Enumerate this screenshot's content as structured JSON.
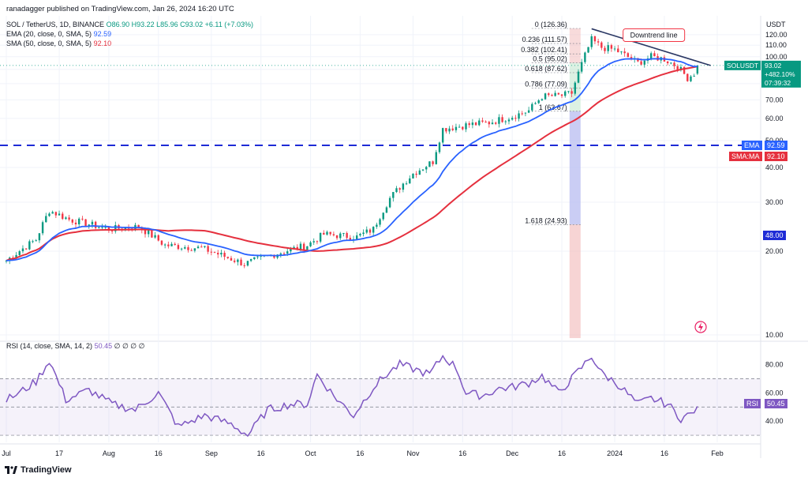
{
  "header": {
    "publish": "ranadagger published on TradingView.com, Jan 26, 2024 16:20 UTC",
    "symbol": "SOL / TetherUS, 1D, BINANCE",
    "ohlc": "O86.90 H93.22 L85.96 C93.02 +6.11 (+7.03%)",
    "ema_label": "EMA (20, close, 0, SMA, 5)",
    "ema_value": "92.59",
    "sma_label": "SMA (50, close, 0, SMA, 5)",
    "sma_value": "92.10",
    "rsi_label": "RSI (14, close, SMA, 14, 2)",
    "rsi_value": "50.45",
    "rsi_extra": "∅ ∅ ∅ ∅"
  },
  "currency": "USDT",
  "brand": "TradingView",
  "colors": {
    "up": "#089981",
    "down": "#f23645",
    "ema": "#2962ff",
    "sma": "#e5303e",
    "rsi": "#7e57c2",
    "trend": "#2a3763",
    "level": "#1e2bd6",
    "fib": "#131722"
  },
  "chart_data": [
    {
      "type": "candlestick",
      "title": "SOL / TetherUS, 1D, BINANCE",
      "y_axis": {
        "scale": "log",
        "range": [
          10,
          126.36
        ],
        "ticks": [
          "120.00",
          "110.00",
          "100.00",
          "90.00",
          "80.00",
          "70.00",
          "60.00",
          "50.00",
          "40.00",
          "30.00",
          "20.00",
          "10.00"
        ]
      },
      "x_axis": {
        "ticks": [
          "Jul",
          "17",
          "Aug",
          "16",
          "Sep",
          "16",
          "Oct",
          "16",
          "Nov",
          "16",
          "Dec",
          "16",
          "2024",
          "16",
          "Feb"
        ],
        "tick_dates": [
          "2023-07-01",
          "2023-07-17",
          "2023-08-01",
          "2023-08-16",
          "2023-09-01",
          "2023-09-16",
          "2023-10-01",
          "2023-10-16",
          "2023-11-01",
          "2023-11-16",
          "2023-12-01",
          "2023-12-16",
          "2024-01-01",
          "2024-01-16",
          "2024-02-01"
        ],
        "range": [
          "2023-07-01",
          "2024-02-01"
        ]
      },
      "closes_anchor": [
        [
          "2023-07-01",
          18.5
        ],
        [
          "2023-07-10",
          22
        ],
        [
          "2023-07-14",
          28
        ],
        [
          "2023-07-20",
          26
        ],
        [
          "2023-08-01",
          24
        ],
        [
          "2023-08-10",
          24.5
        ],
        [
          "2023-08-18",
          21
        ],
        [
          "2023-08-29",
          20.5
        ],
        [
          "2023-09-11",
          18
        ],
        [
          "2023-09-20",
          19.5
        ],
        [
          "2023-09-30",
          21
        ],
        [
          "2023-10-05",
          23
        ],
        [
          "2023-10-15",
          22.5
        ],
        [
          "2023-10-20",
          24
        ],
        [
          "2023-10-25",
          31
        ],
        [
          "2023-11-01",
          38
        ],
        [
          "2023-11-07",
          42
        ],
        [
          "2023-11-10",
          55
        ],
        [
          "2023-11-14",
          56
        ],
        [
          "2023-11-18",
          57
        ],
        [
          "2023-11-24",
          58
        ],
        [
          "2023-12-01",
          61
        ],
        [
          "2023-12-06",
          64
        ],
        [
          "2023-12-10",
          72
        ],
        [
          "2023-12-16",
          72.5
        ],
        [
          "2023-12-19",
          74
        ],
        [
          "2023-12-22",
          94
        ],
        [
          "2023-12-25",
          115
        ],
        [
          "2023-12-28",
          108
        ],
        [
          "2024-01-01",
          106
        ],
        [
          "2024-01-08",
          95
        ],
        [
          "2024-01-12",
          100
        ],
        [
          "2024-01-16",
          98
        ],
        [
          "2024-01-20",
          92
        ],
        [
          "2024-01-23",
          84
        ],
        [
          "2024-01-25",
          87
        ],
        [
          "2024-01-26",
          93.02
        ]
      ],
      "last_candle": {
        "date": "2024-01-26",
        "open": 86.9,
        "high": 93.22,
        "low": 85.96,
        "close": 93.02
      },
      "overlays": [
        {
          "name": "EMA",
          "last": 92.59
        },
        {
          "name": "SMA:MA",
          "last": 92.1
        }
      ],
      "horizontal_level": {
        "value": 48.0,
        "label": "48.00"
      },
      "fibonacci": [
        {
          "ratio": "0",
          "price": 126.36,
          "label": "0 (126.36)"
        },
        {
          "ratio": "0.236",
          "price": 111.57,
          "label": "0.236 (111.57)"
        },
        {
          "ratio": "0.382",
          "price": 102.41,
          "label": "0.382 (102.41)"
        },
        {
          "ratio": "0.5",
          "price": 95.02,
          "label": "0.5 (95.02)"
        },
        {
          "ratio": "0.618",
          "price": 87.62,
          "label": "0.618 (87.62)"
        },
        {
          "ratio": "0.786",
          "price": 77.09,
          "label": "0.786 (77.09)"
        },
        {
          "ratio": "1",
          "price": 63.67,
          "label": "1 (63.67)"
        },
        {
          "ratio": "1.618",
          "price": 24.93,
          "label": "1.618 (24.93)"
        }
      ],
      "trendline": {
        "label": "Downtrend line",
        "from": [
          "2023-12-25",
          126
        ],
        "to": [
          "2024-01-30",
          93
        ]
      },
      "price_tag": {
        "symbol": "SOLUSDT",
        "price": "93.02",
        "change": "+482.10%",
        "countdown": "07:39:32"
      }
    },
    {
      "type": "line",
      "title": "RSI (14, close, SMA, 14, 2)",
      "y_axis": {
        "range": [
          25,
          92
        ],
        "ticks": [
          "80.00",
          "60.00",
          "40.00"
        ],
        "bands": [
          30,
          70
        ]
      },
      "last": 50.45,
      "anchor": [
        [
          "2023-07-01",
          55
        ],
        [
          "2023-07-05",
          60
        ],
        [
          "2023-07-10",
          68
        ],
        [
          "2023-07-14",
          83
        ],
        [
          "2023-07-19",
          55
        ],
        [
          "2023-07-26",
          62
        ],
        [
          "2023-08-02",
          52
        ],
        [
          "2023-08-09",
          48
        ],
        [
          "2023-08-16",
          60
        ],
        [
          "2023-08-22",
          36
        ],
        [
          "2023-08-30",
          44
        ],
        [
          "2023-09-07",
          38
        ],
        [
          "2023-09-12",
          30
        ],
        [
          "2023-09-18",
          48
        ],
        [
          "2023-09-25",
          52
        ],
        [
          "2023-09-30",
          52
        ],
        [
          "2023-10-03",
          73
        ],
        [
          "2023-10-08",
          58
        ],
        [
          "2023-10-14",
          44
        ],
        [
          "2023-10-20",
          64
        ],
        [
          "2023-10-24",
          73
        ],
        [
          "2023-10-28",
          80
        ],
        [
          "2023-11-01",
          77
        ],
        [
          "2023-11-06",
          73
        ],
        [
          "2023-11-10",
          86
        ],
        [
          "2023-11-14",
          78
        ],
        [
          "2023-11-17",
          60
        ],
        [
          "2023-11-22",
          58
        ],
        [
          "2023-11-27",
          63
        ],
        [
          "2023-12-01",
          64
        ],
        [
          "2023-12-06",
          67
        ],
        [
          "2023-12-10",
          72
        ],
        [
          "2023-12-15",
          60
        ],
        [
          "2023-12-19",
          70
        ],
        [
          "2023-12-25",
          86
        ],
        [
          "2023-12-28",
          74
        ],
        [
          "2024-01-02",
          66
        ],
        [
          "2024-01-08",
          52
        ],
        [
          "2024-01-12",
          56
        ],
        [
          "2024-01-17",
          52
        ],
        [
          "2024-01-21",
          42
        ],
        [
          "2024-01-24",
          45
        ],
        [
          "2024-01-26",
          50.45
        ]
      ]
    }
  ],
  "ylabels": [
    "120.00",
    "110.00",
    "100.00",
    "90.00",
    "80.00",
    "70.00",
    "60.00",
    "50.00",
    "40.00",
    "30.00",
    "20.00",
    "10.00"
  ],
  "ylabel_values": [
    120,
    110,
    100,
    90,
    80,
    70,
    60,
    50,
    40,
    30,
    20,
    10
  ],
  "rsi_ylabels": [
    "80.00",
    "60.00",
    "40.00"
  ],
  "rsi_ylabel_values": [
    80,
    60,
    40
  ],
  "xlabels": [
    "Jul",
    "17",
    "Aug",
    "16",
    "Sep",
    "16",
    "Oct",
    "16",
    "Nov",
    "16",
    "Dec",
    "16",
    "2024",
    "16",
    "Feb"
  ],
  "tags": {
    "ema_name": "EMA",
    "ema_val": "92.59",
    "sma_name": "SMA:MA",
    "sma_val": "92.10",
    "level": "48.00",
    "rsi_name": "RSI",
    "rsi_val": "50.45"
  }
}
